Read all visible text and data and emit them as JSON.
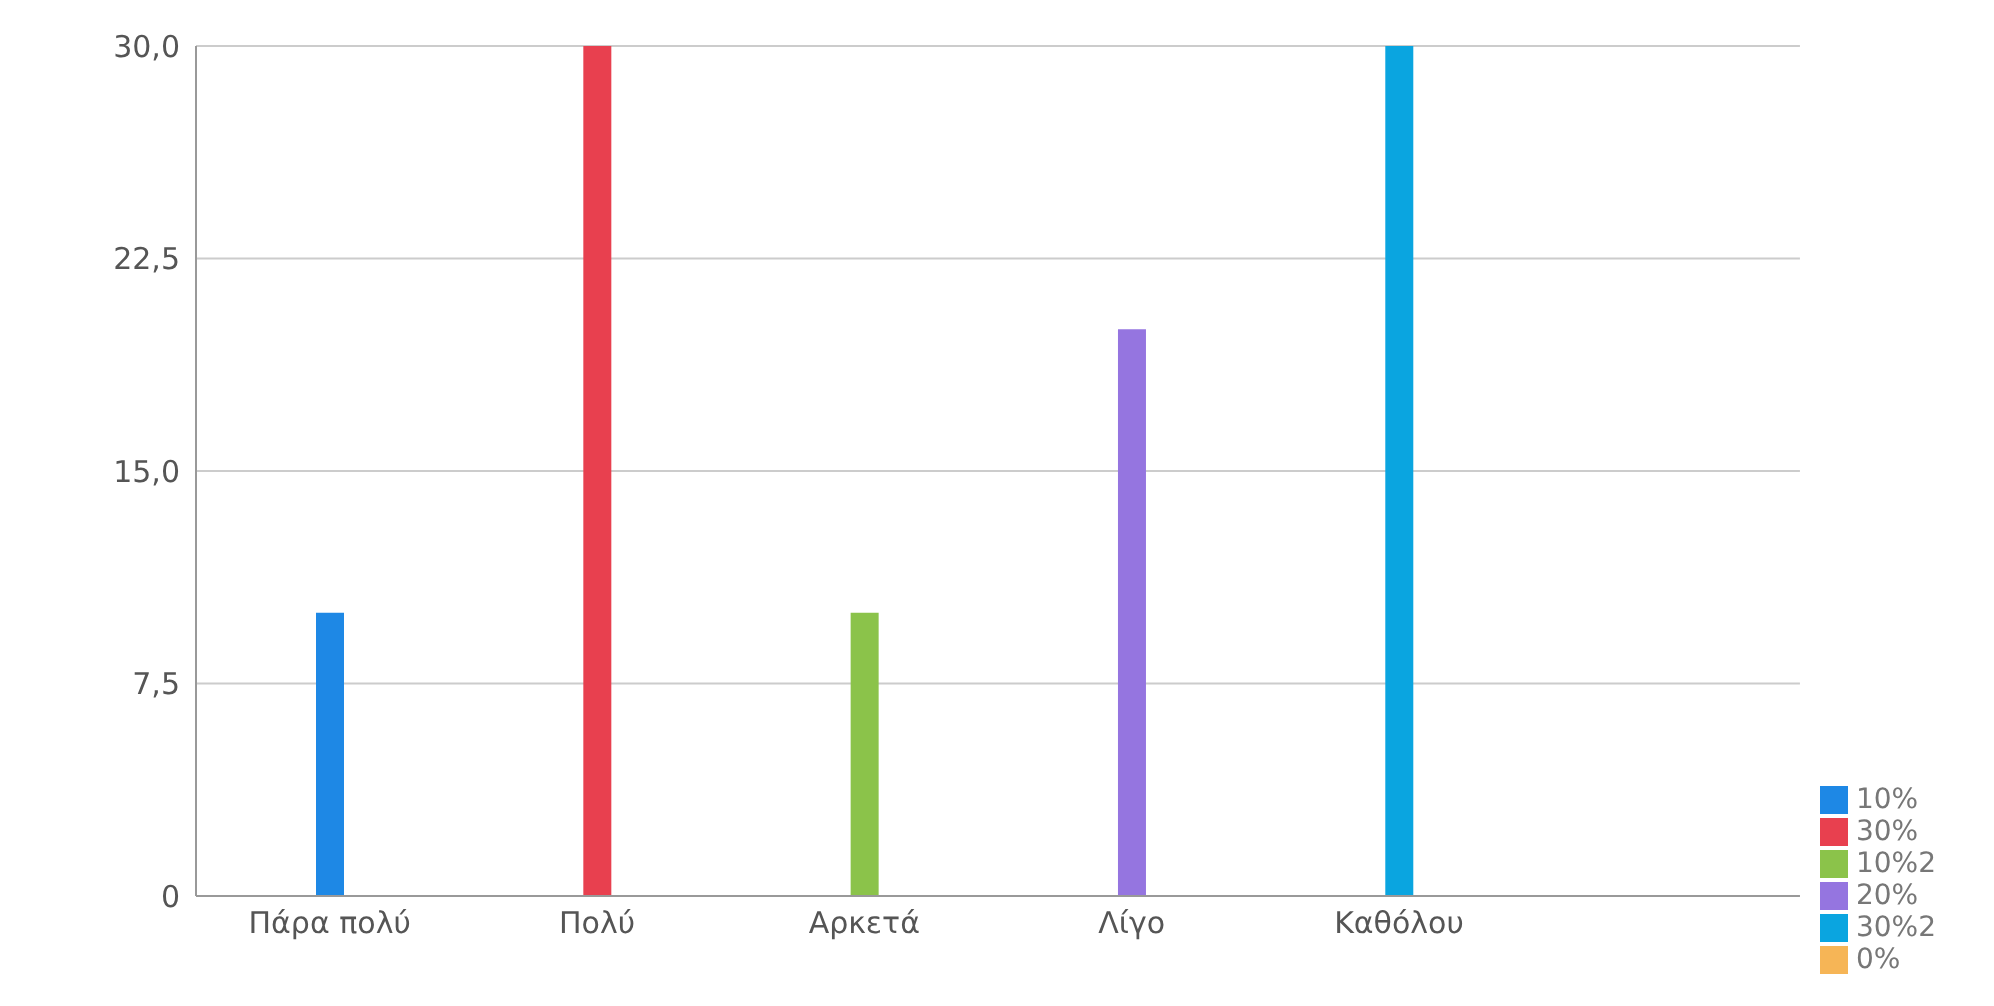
{
  "chart_data": {
    "type": "bar",
    "stacked": true,
    "categories": [
      "Πάρα πολύ",
      "Πολύ",
      "Αρκετά",
      "Λίγο",
      "Καθόλου",
      null
    ],
    "series": [
      {
        "name": "10%",
        "color": "#1e88e5",
        "values": [
          10,
          null,
          null,
          null,
          null,
          null
        ]
      },
      {
        "name": "30%",
        "color": "#e8404f",
        "values": [
          null,
          30,
          null,
          null,
          null,
          null
        ]
      },
      {
        "name": "10%2",
        "color": "#8bc34a",
        "values": [
          null,
          null,
          10,
          null,
          null,
          null
        ]
      },
      {
        "name": "20%",
        "color": "#9575e0",
        "values": [
          null,
          null,
          null,
          20,
          null,
          null
        ]
      },
      {
        "name": "30%2",
        "color": "#0aa5e0",
        "values": [
          null,
          null,
          null,
          null,
          30,
          null
        ]
      },
      {
        "name": "0%",
        "color": "#f6b556",
        "values": [
          null,
          null,
          null,
          null,
          null,
          0
        ]
      }
    ],
    "ylim": [
      0,
      30
    ],
    "yticks": [
      0,
      {
        "value": 7.5,
        "label": "7,5"
      },
      {
        "value": 15,
        "label": "15,0"
      },
      {
        "value": 22.5,
        "label": "22,5"
      },
      {
        "value": 30,
        "label": "30,0"
      }
    ],
    "grid": "y",
    "legend": "bottom right"
  }
}
